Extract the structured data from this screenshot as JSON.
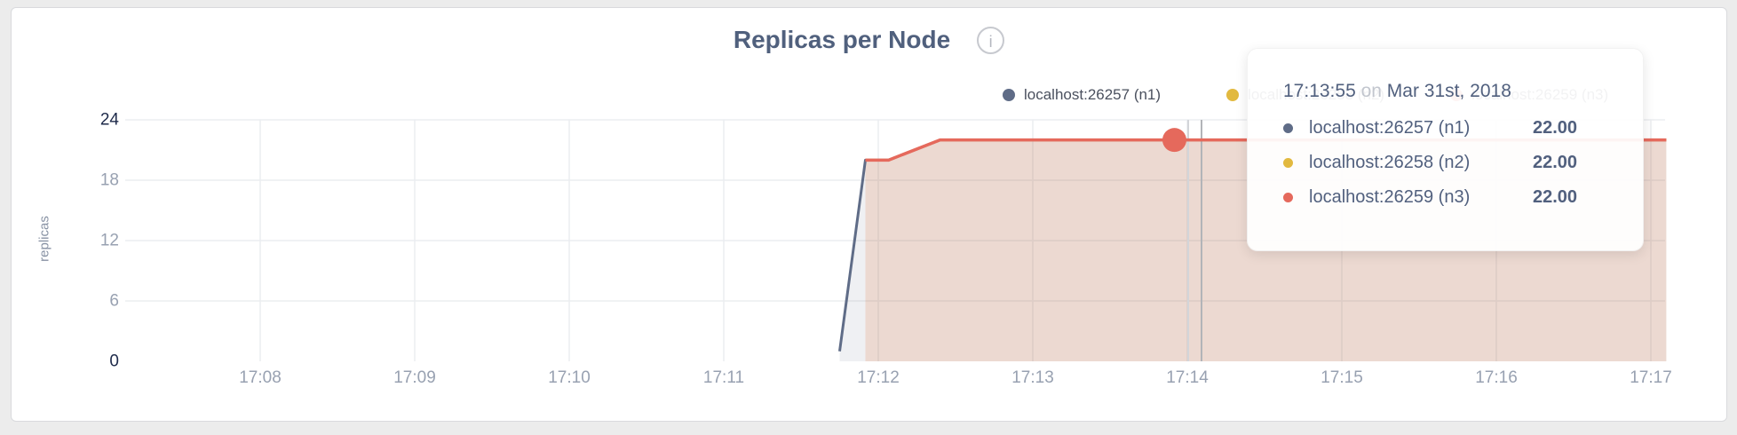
{
  "chart": {
    "title": "Replicas per Node",
    "icons": {
      "info_glyph": "i"
    },
    "ylabel": "replicas",
    "legend": [
      {
        "label": "localhost:26257 (n1)",
        "color": "#5f6c87"
      },
      {
        "label": "localhost:26258 (n2)",
        "color": "#e2b93f"
      },
      {
        "label": "localhost:26259 (n3)",
        "color": "#e5695c"
      }
    ]
  },
  "chart_data": {
    "type": "area",
    "title": "Replicas per Node",
    "xlabel": "",
    "ylabel": "replicas",
    "x_ticks": [
      "17:08",
      "17:09",
      "17:10",
      "17:11",
      "17:12",
      "17:13",
      "17:14",
      "17:15",
      "17:16",
      "17:17"
    ],
    "y_ticks": [
      0,
      6,
      12,
      18,
      24
    ],
    "ylim": [
      0,
      24
    ],
    "grid": true,
    "legend_position": "top-right",
    "series": [
      {
        "name": "localhost:26257 (n1)",
        "color": "#5f6c87",
        "fill": "rgba(95,108,135,0.10)",
        "points": [
          [
            "17:11:45",
            1
          ],
          [
            "17:11:55",
            20
          ],
          [
            "17:12:04",
            20
          ],
          [
            "17:12:24",
            22
          ],
          [
            "17:17:06",
            22
          ]
        ]
      },
      {
        "name": "localhost:26258 (n2)",
        "color": "#e2b93f",
        "fill": "rgba(226,185,63,0.07)",
        "points": [
          [
            "17:11:55",
            20
          ],
          [
            "17:12:04",
            20
          ],
          [
            "17:12:24",
            22
          ],
          [
            "17:17:06",
            22
          ]
        ]
      },
      {
        "name": "localhost:26259 (n3)",
        "color": "#e5695c",
        "fill": "rgba(229,105,92,0.14)",
        "points": [
          [
            "17:11:55",
            20
          ],
          [
            "17:12:04",
            20
          ],
          [
            "17:12:24",
            22
          ],
          [
            "17:17:06",
            22
          ]
        ]
      }
    ],
    "hover": {
      "time": "17:13:55",
      "marker_series": "localhost:26259 (n3)",
      "marker_value": 22
    }
  },
  "tooltip": {
    "time": "17:13:55",
    "conjunction": "on",
    "date": "Mar 31st, 2018",
    "rows": [
      {
        "label": "localhost:26257 (n1)",
        "value": "22.00",
        "color": "#5f6c87"
      },
      {
        "label": "localhost:26258 (n2)",
        "value": "22.00",
        "color": "#e2b93f"
      },
      {
        "label": "localhost:26259 (n3)",
        "value": "22.00",
        "color": "#e5695c"
      }
    ]
  }
}
